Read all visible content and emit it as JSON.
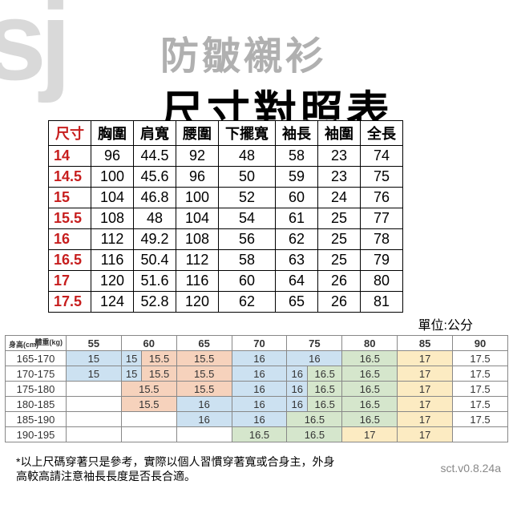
{
  "watermark": "sj",
  "subtitle": "防皺襯衫",
  "title": "尺寸對照表",
  "unit": "單位:公分",
  "note": "*以上尺碼穿著只是參考，實際以個人習慣穿著寬或合身主，外身高較高請注意袖長長度是否長合適。",
  "version": "sct.v0.8.24a",
  "size_table": {
    "columns": [
      "尺寸",
      "胸圍",
      "肩寬",
      "腰圍",
      "下擺寬",
      "袖長",
      "袖圍",
      "全長"
    ],
    "rows": [
      [
        "14",
        "96",
        "44.5",
        "92",
        "48",
        "58",
        "23",
        "74"
      ],
      [
        "14.5",
        "100",
        "45.6",
        "96",
        "50",
        "59",
        "23",
        "75"
      ],
      [
        "15",
        "104",
        "46.8",
        "100",
        "52",
        "60",
        "24",
        "76"
      ],
      [
        "15.5",
        "108",
        "48",
        "104",
        "54",
        "61",
        "25",
        "77"
      ],
      [
        "16",
        "112",
        "49.2",
        "108",
        "56",
        "62",
        "25",
        "78"
      ],
      [
        "16.5",
        "116",
        "50.4",
        "112",
        "58",
        "63",
        "25",
        "79"
      ],
      [
        "17",
        "120",
        "51.6",
        "116",
        "60",
        "64",
        "26",
        "80"
      ],
      [
        "17.5",
        "124",
        "52.8",
        "120",
        "62",
        "65",
        "26",
        "81"
      ]
    ]
  },
  "rec_table": {
    "axis_top": "體重(kg)",
    "axis_bot": "身高(cm)",
    "weights": [
      "55",
      "60",
      "65",
      "70",
      "75",
      "80",
      "85",
      "90"
    ],
    "heights": [
      "165-170",
      "170-175",
      "175-180",
      "180-185",
      "185-190",
      "190-195"
    ],
    "cells": [
      [
        {
          "v": "15",
          "c": "blue",
          "s": 2
        },
        {
          "v": "15",
          "c": "blue",
          "s": 1
        },
        {
          "v": "15.5",
          "c": "orange",
          "s": 1
        },
        {
          "v": "15.5",
          "c": "orange",
          "s": 2
        },
        {
          "v": "16",
          "c": "blue",
          "s": 2
        },
        {
          "v": "16",
          "c": "blue",
          "s": 2
        },
        {
          "v": "16.5",
          "c": "green",
          "s": 2
        },
        {
          "v": "17",
          "c": "yellow",
          "s": 2
        },
        {
          "v": "17.5",
          "c": "",
          "s": 2
        }
      ],
      [
        {
          "v": "15",
          "c": "blue",
          "s": 2
        },
        {
          "v": "15",
          "c": "blue",
          "s": 1
        },
        {
          "v": "15.5",
          "c": "orange",
          "s": 1
        },
        {
          "v": "15.5",
          "c": "orange",
          "s": 2
        },
        {
          "v": "16",
          "c": "blue",
          "s": 2
        },
        {
          "v": "16",
          "c": "blue",
          "s": 1
        },
        {
          "v": "16.5",
          "c": "green",
          "s": 1
        },
        {
          "v": "16.5",
          "c": "green",
          "s": 2
        },
        {
          "v": "17",
          "c": "yellow",
          "s": 2
        },
        {
          "v": "17.5",
          "c": "",
          "s": 2
        }
      ],
      [
        {
          "v": "",
          "c": "",
          "s": 2
        },
        {
          "v": "15.5",
          "c": "orange",
          "s": 2
        },
        {
          "v": "15.5",
          "c": "orange",
          "s": 2
        },
        {
          "v": "16",
          "c": "blue",
          "s": 2
        },
        {
          "v": "16",
          "c": "blue",
          "s": 1
        },
        {
          "v": "16.5",
          "c": "green",
          "s": 1
        },
        {
          "v": "16.5",
          "c": "green",
          "s": 2
        },
        {
          "v": "17",
          "c": "yellow",
          "s": 2
        },
        {
          "v": "17.5",
          "c": "",
          "s": 2
        }
      ],
      [
        {
          "v": "",
          "c": "",
          "s": 2
        },
        {
          "v": "15.5",
          "c": "orange",
          "s": 2
        },
        {
          "v": "16",
          "c": "blue",
          "s": 2
        },
        {
          "v": "16",
          "c": "blue",
          "s": 2
        },
        {
          "v": "16",
          "c": "blue",
          "s": 1
        },
        {
          "v": "16.5",
          "c": "green",
          "s": 1
        },
        {
          "v": "16.5",
          "c": "green",
          "s": 2
        },
        {
          "v": "17",
          "c": "yellow",
          "s": 2
        },
        {
          "v": "17.5",
          "c": "",
          "s": 2
        }
      ],
      [
        {
          "v": "",
          "c": "",
          "s": 2
        },
        {
          "v": "",
          "c": "",
          "s": 2
        },
        {
          "v": "16",
          "c": "blue",
          "s": 2
        },
        {
          "v": "16",
          "c": "blue",
          "s": 2
        },
        {
          "v": "16.5",
          "c": "green",
          "s": 2
        },
        {
          "v": "16.5",
          "c": "green",
          "s": 2
        },
        {
          "v": "17",
          "c": "yellow",
          "s": 2
        },
        {
          "v": "17.5",
          "c": "",
          "s": 2
        }
      ],
      [
        {
          "v": "",
          "c": "",
          "s": 2
        },
        {
          "v": "",
          "c": "",
          "s": 2
        },
        {
          "v": "",
          "c": "",
          "s": 2
        },
        {
          "v": "16.5",
          "c": "green",
          "s": 2
        },
        {
          "v": "16.5",
          "c": "green",
          "s": 2
        },
        {
          "v": "17",
          "c": "yellow",
          "s": 2
        },
        {
          "v": "17",
          "c": "yellow",
          "s": 2
        },
        {
          "v": "",
          "c": "",
          "s": 2
        }
      ]
    ]
  },
  "colors": {
    "blue": "#cce1f1",
    "orange": "#f6d2bc",
    "green": "#d5e6cc",
    "yellow": "#fcebc2"
  }
}
